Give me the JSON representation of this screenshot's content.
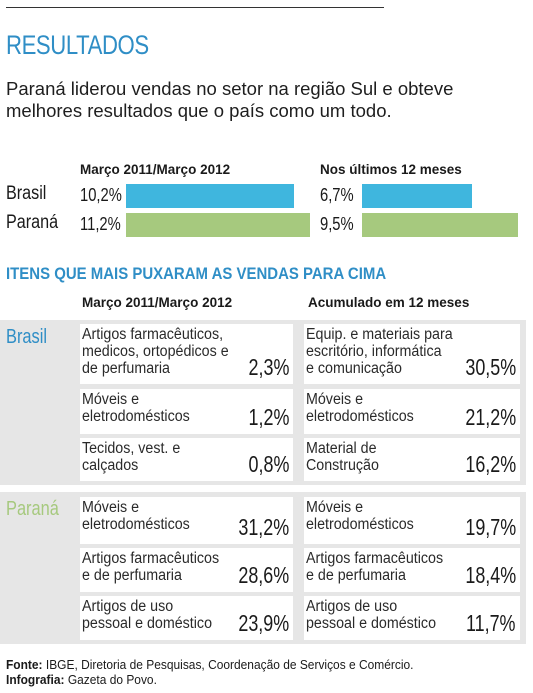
{
  "title": "RESULTADOS",
  "subtitle": "Paraná liderou vendas no setor na região Sul e obteve melhores resultados que o país como um todo.",
  "colors": {
    "brasil": "#3fb6de",
    "parana": "#a6c97e",
    "accent": "#2f8ec6"
  },
  "chart_data": {
    "type": "bar",
    "orientation": "horizontal",
    "categories": [
      "Brasil",
      "Paraná"
    ],
    "series": [
      {
        "name": "Março 2011/Março 2012",
        "values": [
          10.2,
          11.2
        ],
        "labels": [
          "10,2%",
          "11,2%"
        ]
      },
      {
        "name": "Nos últimos 12 meses",
        "values": [
          6.7,
          9.5
        ],
        "labels": [
          "6,7%",
          "9,5%"
        ]
      }
    ]
  },
  "items": {
    "title": "ITENS QUE MAIS PUXARAM AS VENDAS PARA CIMA",
    "col1_header": "Março 2011/Março 2012",
    "col2_header": "Acumulado em 12 meses",
    "groups": [
      {
        "name": "Brasil",
        "col1": [
          {
            "lines": [
              "Artigos farmacêuticos,",
              "medicos, ortopédicos e",
              "de perfumaria"
            ],
            "value": "2,3%"
          },
          {
            "lines": [
              "Móveis e",
              "eletrodomésticos"
            ],
            "value": "1,2%"
          },
          {
            "lines": [
              "Tecidos, vest. e",
              "calçados"
            ],
            "value": "0,8%"
          }
        ],
        "col2": [
          {
            "lines": [
              "Equip. e materiais para",
              "escritório, informática",
              "e comunicação"
            ],
            "value": "30,5%"
          },
          {
            "lines": [
              "Móveis e",
              "eletrodomésticos"
            ],
            "value": "21,2%"
          },
          {
            "lines": [
              "Material de",
              "Construção"
            ],
            "value": "16,2%"
          }
        ]
      },
      {
        "name": "Paraná",
        "col1": [
          {
            "lines": [
              "Móveis e",
              "eletrodomésticos"
            ],
            "value": "31,2%"
          },
          {
            "lines": [
              "Artigos farmacêuticos",
              "e de perfumaria"
            ],
            "value": "28,6%"
          },
          {
            "lines": [
              "Artigos de uso",
              "pessoal e doméstico"
            ],
            "value": "23,9%"
          }
        ],
        "col2": [
          {
            "lines": [
              "Móveis e",
              "eletrodomésticos"
            ],
            "value": "19,7%"
          },
          {
            "lines": [
              "Artigos farmacêuticos",
              "e de perfumaria"
            ],
            "value": "18,4%"
          },
          {
            "lines": [
              "Artigos de uso",
              "pessoal e doméstico"
            ],
            "value": "11,7%"
          }
        ]
      }
    ]
  },
  "footer": {
    "source_label": "Fonte:",
    "source": "IBGE, Diretoria de Pesquisas, Coordenação de Serviços e Comércio.",
    "credit_label": "Infografia:",
    "credit": "Gazeta do Povo."
  }
}
